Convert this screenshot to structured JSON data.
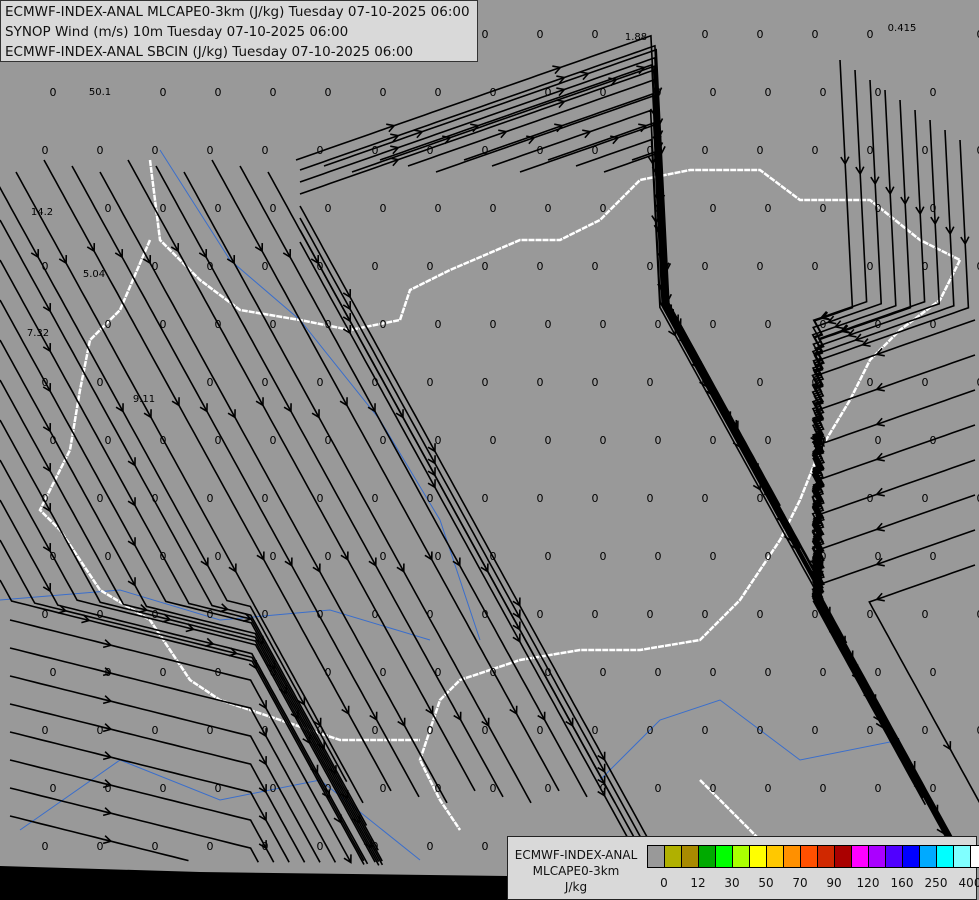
{
  "header": {
    "lines": [
      "ECMWF-INDEX-ANAL MLCAPE0-3km (J/kg) Tuesday 07-10-2025 06:00",
      "SYNOP Wind (m/s) 10m Tuesday 07-10-2025 06:00",
      "ECMWF-INDEX-ANAL SBCIN (J/kg) Tuesday 07-10-2025 06:00"
    ]
  },
  "map": {
    "background_color": "#999999",
    "streamline_color": "#000000",
    "border_color": "#ffffff",
    "river_color": "#3a6ecc",
    "nonzero_values": [
      "1.88",
      "0.415",
      "50.1",
      "14.2",
      "5.04",
      "7.32",
      "9.11"
    ],
    "default_value": "0"
  },
  "legend": {
    "title_lines": [
      "ECMWF-INDEX-ANAL",
      "MLCAPE0-3km",
      "J/kg"
    ],
    "colors": [
      "#999999",
      "#b0b000",
      "#a88a00",
      "#00aa00",
      "#00ff00",
      "#aaff00",
      "#ffff00",
      "#ffc800",
      "#ff9000",
      "#ff5000",
      "#d02800",
      "#aa0000",
      "#ff00ff",
      "#aa00ff",
      "#5000ff",
      "#0000ff",
      "#00aaff",
      "#00ffff",
      "#80ffff",
      "#ffffff"
    ],
    "ticks": [
      "0",
      "12",
      "30",
      "50",
      "70",
      "90",
      "120",
      "160",
      "250",
      "400"
    ]
  }
}
